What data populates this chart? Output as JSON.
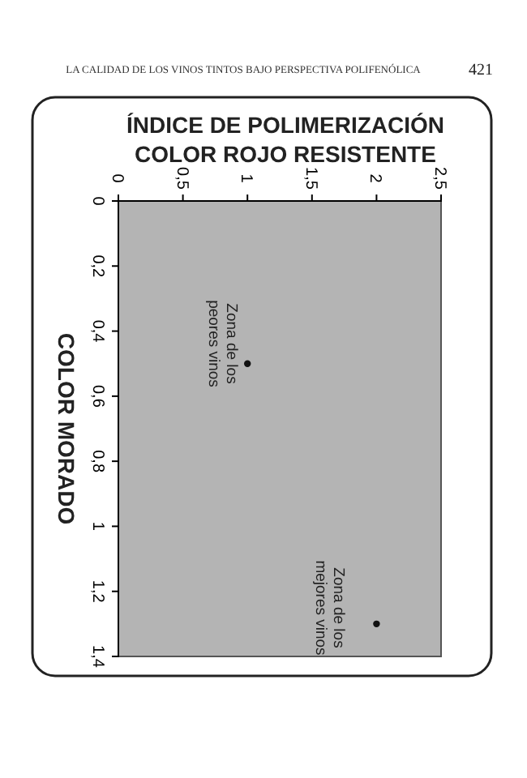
{
  "chart_data": {
    "type": "scatter",
    "title": "ÍNDICE DE POLIMERIZACIÓN",
    "xlabel": "COLOR ROJO RESISTENTE",
    "ylabel": "COLOR MORADO",
    "x": [
      1.0,
      2.0
    ],
    "values": [
      0.5,
      1.3
    ],
    "color": "#111111",
    "marker": "circle",
    "xlim": [
      0,
      2.5
    ],
    "xticks": [
      0,
      {
        "value": 0.5,
        "label": "0,5"
      },
      1,
      {
        "value": 1.5,
        "label": "1,5"
      },
      2,
      {
        "value": 2.5,
        "label": "2,5"
      }
    ],
    "ylim": [
      1.4,
      0
    ],
    "yticks": [
      0,
      {
        "value": 0.2,
        "label": "0,2"
      },
      {
        "value": 0.4,
        "label": "0,4"
      },
      {
        "value": 0.6,
        "label": "0,6"
      },
      {
        "value": 0.8,
        "label": "0,8"
      },
      1,
      {
        "value": 1.2,
        "label": "1,2"
      },
      {
        "value": 1.4,
        "label": "1,4"
      }
    ],
    "grid": false,
    "annotations": [
      "LA CALIDAD DE LOS VINOS TINTOS BAJO PERSPECTIVA POLIFENÓLICA",
      "421",
      "Zona de los peores vinos",
      "Zona de los mejores vinos"
    ]
  }
}
